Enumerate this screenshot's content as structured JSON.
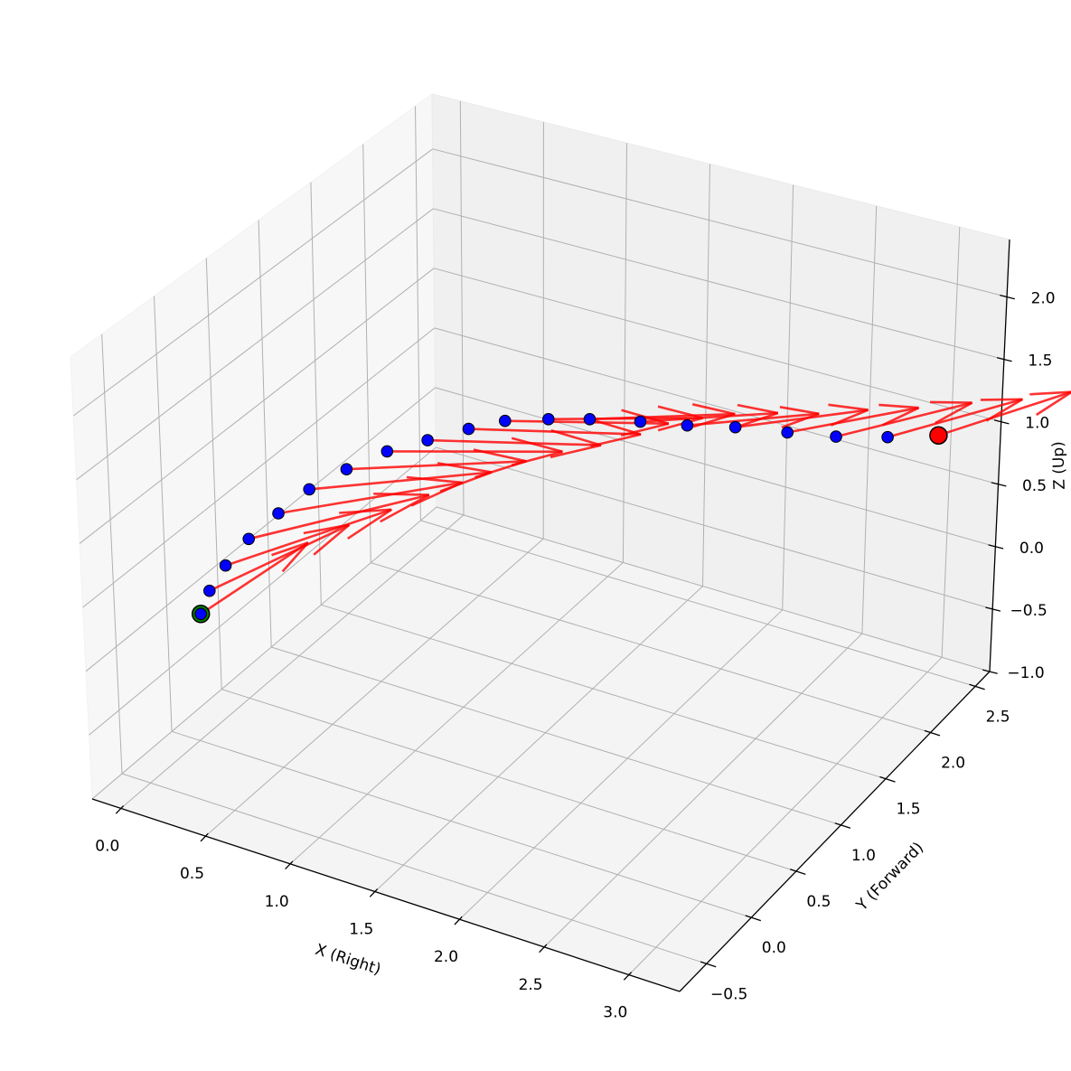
{
  "chart_data": {
    "type": "scatter",
    "projection": "3d",
    "title": "",
    "xlabel": "X (Right)",
    "ylabel": "Y (Forward)",
    "zlabel": "Z (Up)",
    "xlim": [
      -0.17,
      3.3
    ],
    "ylim": [
      -0.8,
      2.66
    ],
    "zlim": [
      -1.0,
      2.46
    ],
    "grid": true,
    "x_ticks": {
      "values": [
        0.0,
        0.5,
        1.0,
        1.5,
        2.0,
        2.5,
        3.0
      ],
      "labels": [
        "0.0",
        "0.5",
        "1.0",
        "1.5",
        "2.0",
        "2.5",
        "3.0"
      ]
    },
    "y_ticks": {
      "values": [
        -0.5,
        0.0,
        0.5,
        1.0,
        1.5,
        2.0,
        2.5
      ],
      "labels": [
        "−0.5",
        "0.0",
        "0.5",
        "1.0",
        "1.5",
        "2.0",
        "2.5"
      ]
    },
    "z_ticks": {
      "values": [
        -1.0,
        -0.5,
        0.0,
        0.5,
        1.0,
        1.5,
        2.0
      ],
      "labels": [
        "−1.0",
        "−0.5",
        "0.0",
        "0.5",
        "1.0",
        "1.5",
        "2.0"
      ]
    },
    "colors": {
      "path_points": "#0000ff",
      "direction_arrows": "#ff0000",
      "start_marker": "#008000",
      "end_marker": "#ff0000",
      "marker_edge": "#000000",
      "grid": "#b0b0b0",
      "pane_left": "#f7f7f7",
      "pane_back": "#f0f0f0",
      "pane_floor": "#f4f4f4"
    },
    "points": [
      {
        "x": 0.02,
        "y": 0.02,
        "z": 0.0
      },
      {
        "x": -0.01,
        "y": 0.16,
        "z": 0.08
      },
      {
        "x": -0.02,
        "y": 0.34,
        "z": 0.16
      },
      {
        "x": 0.0,
        "y": 0.54,
        "z": 0.25
      },
      {
        "x": 0.04,
        "y": 0.77,
        "z": 0.32
      },
      {
        "x": 0.1,
        "y": 0.98,
        "z": 0.4
      },
      {
        "x": 0.21,
        "y": 1.17,
        "z": 0.48
      },
      {
        "x": 0.34,
        "y": 1.36,
        "z": 0.55
      },
      {
        "x": 0.5,
        "y": 1.5,
        "z": 0.61
      },
      {
        "x": 0.67,
        "y": 1.63,
        "z": 0.68
      },
      {
        "x": 0.83,
        "y": 1.73,
        "z": 0.74
      },
      {
        "x": 1.05,
        "y": 1.8,
        "z": 0.79
      },
      {
        "x": 1.27,
        "y": 1.85,
        "z": 0.84
      },
      {
        "x": 1.54,
        "y": 1.91,
        "z": 0.88
      },
      {
        "x": 1.8,
        "y": 1.95,
        "z": 0.92
      },
      {
        "x": 2.05,
        "y": 2.02,
        "z": 0.95
      },
      {
        "x": 2.33,
        "y": 2.08,
        "z": 0.97
      },
      {
        "x": 2.59,
        "y": 2.14,
        "z": 0.99
      },
      {
        "x": 2.84,
        "y": 2.25,
        "z": 1.0
      },
      {
        "x": 3.07,
        "y": 2.39,
        "z": 1.0
      }
    ],
    "directions": [
      {
        "u": 0.09,
        "v": 0.92,
        "w": 0
      },
      {
        "u": 0.26,
        "v": 0.96,
        "w": 0
      },
      {
        "u": 0.43,
        "v": 0.94,
        "w": 0
      },
      {
        "u": 0.56,
        "v": 0.87,
        "w": 0
      },
      {
        "u": 0.65,
        "v": 0.76,
        "w": 0
      },
      {
        "u": 0.72,
        "v": 0.63,
        "w": 0
      },
      {
        "u": 0.76,
        "v": 0.54,
        "w": 0
      },
      {
        "u": 0.79,
        "v": 0.45,
        "w": 0
      },
      {
        "u": 0.81,
        "v": 0.4,
        "w": 0
      },
      {
        "u": 0.81,
        "v": 0.39,
        "w": 0
      },
      {
        "u": 0.76,
        "v": 0.39,
        "w": 0
      },
      {
        "u": 0.7,
        "v": 0.4,
        "w": 0
      },
      {
        "u": 0.64,
        "v": 0.41,
        "w": 0
      },
      {
        "u": 0.59,
        "v": 0.42,
        "w": 0
      },
      {
        "u": 0.55,
        "v": 0.43,
        "w": 0
      },
      {
        "u": 0.53,
        "v": 0.48,
        "w": 0
      },
      {
        "u": 0.49,
        "v": 0.54,
        "w": 0
      },
      {
        "u": 0.47,
        "v": 0.63,
        "w": 0
      },
      {
        "u": 0.45,
        "v": 0.66,
        "w": 0
      },
      {
        "u": 0.42,
        "v": 0.7,
        "w": 0
      }
    ]
  }
}
